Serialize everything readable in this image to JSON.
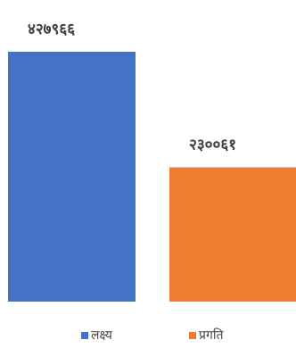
{
  "chart_data": {
    "type": "bar",
    "categories": [
      "लक्ष्य",
      "प्रगति"
    ],
    "values": [
      427966,
      230061
    ],
    "data_labels": [
      "४२७९६६",
      "२३००६१"
    ],
    "colors": [
      "#4472c4",
      "#ed7d31"
    ],
    "ylim": [
      0,
      427966
    ],
    "title": "",
    "xlabel": "",
    "ylabel": "",
    "grid": false,
    "legend_position": "bottom"
  },
  "legend": {
    "items": [
      {
        "label": "लक्ष्य",
        "color": "#4472c4"
      },
      {
        "label": "प्रगति",
        "color": "#ed7d31"
      }
    ]
  }
}
